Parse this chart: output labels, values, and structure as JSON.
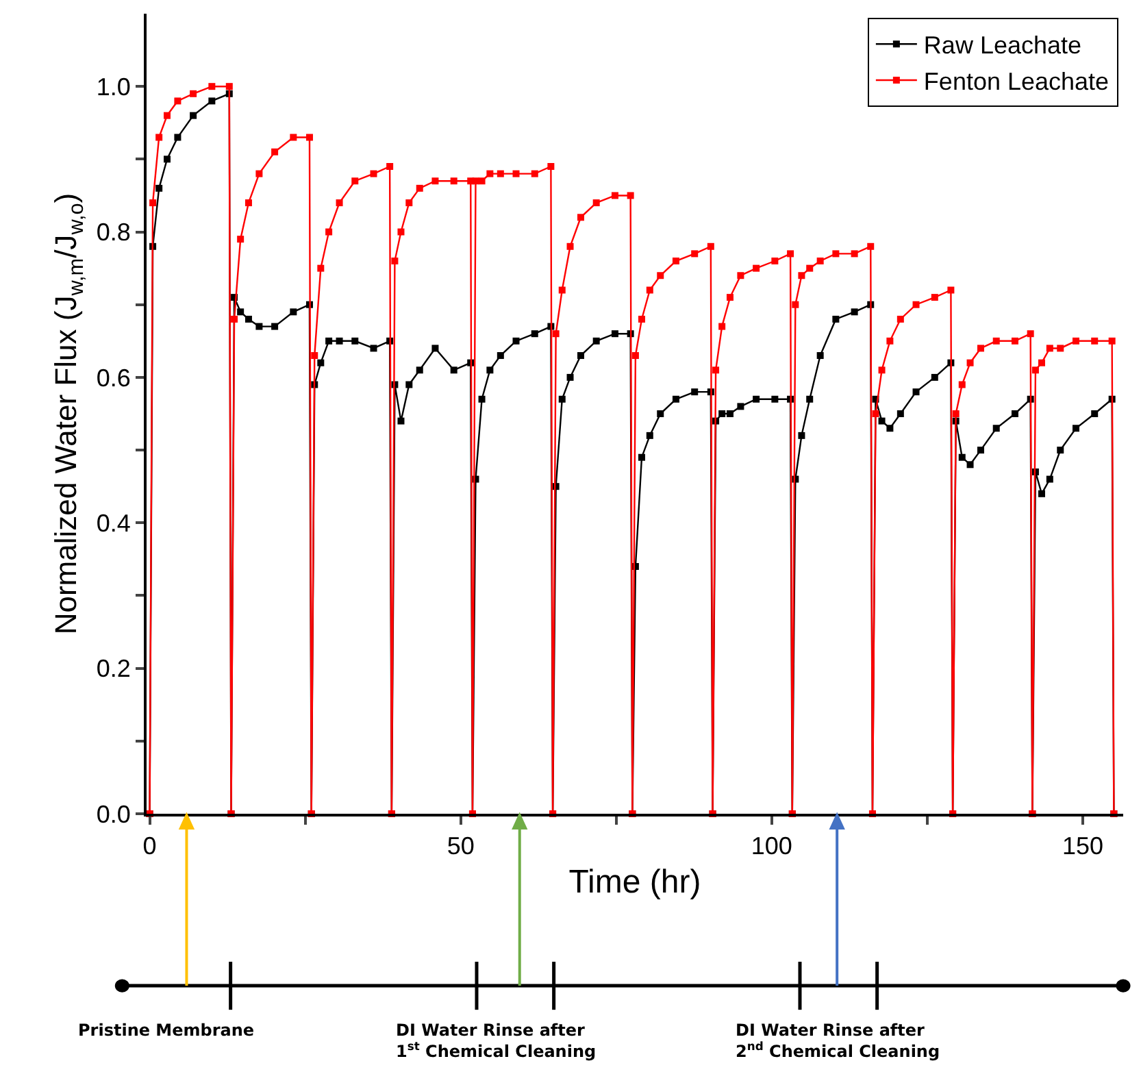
{
  "chart_data": {
    "type": "line",
    "xlabel": "Time (hr)",
    "ylabel": "Normalized Water Flux (J$_{w,m}$/J$_{w,o}$)",
    "x": [
      0,
      0.5,
      1.5,
      2.8,
      4.5,
      7.0,
      10.0,
      12.8,
      13.1,
      13.6,
      14.6,
      15.9,
      17.6,
      20.1,
      23.1,
      25.7,
      26.0,
      26.5,
      27.5,
      28.8,
      30.5,
      33.0,
      36.0,
      38.6,
      38.9,
      39.4,
      40.4,
      41.7,
      43.4,
      45.9,
      48.9,
      51.6,
      51.9,
      52.4,
      53.4,
      54.7,
      56.4,
      58.9,
      61.9,
      64.5,
      64.8,
      65.3,
      66.3,
      67.6,
      69.3,
      71.8,
      74.8,
      77.3,
      77.6,
      78.1,
      79.1,
      80.4,
      82.1,
      84.6,
      87.6,
      90.2,
      90.5,
      91.0,
      92.0,
      93.3,
      95.0,
      97.5,
      100.5,
      103.0,
      103.3,
      103.8,
      104.8,
      106.1,
      107.8,
      110.3,
      113.3,
      115.9,
      116.2,
      116.7,
      117.7,
      119.0,
      120.7,
      123.2,
      126.2,
      128.8,
      129.1,
      129.6,
      130.6,
      131.9,
      133.6,
      136.1,
      139.1,
      141.6,
      141.9,
      142.4,
      143.4,
      144.7,
      146.4,
      148.9,
      151.9,
      154.7,
      155.0
    ],
    "series": [
      {
        "name": "Raw Leachate",
        "color": "#000000",
        "values": [
          0,
          0.78,
          0.86,
          0.9,
          0.93,
          0.96,
          0.98,
          0.99,
          0,
          0.71,
          0.69,
          0.68,
          0.67,
          0.67,
          0.69,
          0.7,
          0,
          0.59,
          0.62,
          0.65,
          0.65,
          0.65,
          0.64,
          0.65,
          0,
          0.59,
          0.54,
          0.59,
          0.61,
          0.64,
          0.61,
          0.62,
          0,
          0.46,
          0.57,
          0.61,
          0.63,
          0.65,
          0.66,
          0.67,
          0,
          0.45,
          0.57,
          0.6,
          0.63,
          0.65,
          0.66,
          0.66,
          0,
          0.34,
          0.49,
          0.52,
          0.55,
          0.57,
          0.58,
          0.58,
          0,
          0.54,
          0.55,
          0.55,
          0.56,
          0.57,
          0.57,
          0.57,
          0,
          0.46,
          0.52,
          0.57,
          0.63,
          0.68,
          0.69,
          0.7,
          0,
          0.57,
          0.54,
          0.53,
          0.55,
          0.58,
          0.6,
          0.62,
          0,
          0.54,
          0.49,
          0.48,
          0.5,
          0.53,
          0.55,
          0.57,
          0,
          0.47,
          0.44,
          0.46,
          0.5,
          0.53,
          0.55,
          0.57,
          0
        ]
      },
      {
        "name": "Fenton Leachate",
        "color": "#ff0000",
        "values": [
          0,
          0.84,
          0.93,
          0.96,
          0.98,
          0.99,
          1.0,
          1.0,
          0,
          0.68,
          0.79,
          0.84,
          0.88,
          0.91,
          0.93,
          0.93,
          0,
          0.63,
          0.75,
          0.8,
          0.84,
          0.87,
          0.88,
          0.89,
          0,
          0.76,
          0.8,
          0.84,
          0.86,
          0.87,
          0.87,
          0.87,
          0,
          0.87,
          0.87,
          0.88,
          0.88,
          0.88,
          0.88,
          0.89,
          0,
          0.66,
          0.72,
          0.78,
          0.82,
          0.84,
          0.85,
          0.85,
          0,
          0.63,
          0.68,
          0.72,
          0.74,
          0.76,
          0.77,
          0.78,
          0,
          0.61,
          0.67,
          0.71,
          0.74,
          0.75,
          0.76,
          0.77,
          0,
          0.7,
          0.74,
          0.75,
          0.76,
          0.77,
          0.77,
          0.78,
          0,
          0.55,
          0.61,
          0.65,
          0.68,
          0.7,
          0.71,
          0.72,
          0,
          0.55,
          0.59,
          0.62,
          0.64,
          0.65,
          0.65,
          0.66,
          0,
          0.61,
          0.62,
          0.64,
          0.64,
          0.65,
          0.65,
          0.65,
          0
        ]
      }
    ],
    "xlim": [
      -0.5,
      156.5
    ],
    "ylim": [
      0,
      1.1
    ],
    "xticks": [
      0,
      {
        "value": 25,
        "label": null
      },
      50,
      {
        "value": 75,
        "label": null
      },
      100,
      {
        "value": 125,
        "label": null
      },
      150
    ],
    "yticks": [
      {
        "value": 0,
        "label": "0.0"
      },
      {
        "value": 0.1,
        "label": null
      },
      {
        "value": 0.2,
        "label": "0.2"
      },
      {
        "value": 0.3,
        "label": null
      },
      {
        "value": 0.4,
        "label": "0.4"
      },
      {
        "value": 0.5,
        "label": null
      },
      {
        "value": 0.6,
        "label": "0.6"
      },
      {
        "value": 0.7,
        "label": null
      },
      {
        "value": 0.8,
        "label": "0.8"
      },
      {
        "value": 0.9,
        "label": null
      },
      {
        "value": 1.0,
        "label": "1.0"
      }
    ],
    "legend": "top right",
    "marker": "square",
    "line_style": "solid",
    "annotations": [
      "Pristine Membrane",
      "DI Water Rinse after\n1$^{st}$ Chemical Cleaning",
      "DI Water Rinse after\n2$^{nd}$ Chemical Cleaning"
    ]
  }
}
